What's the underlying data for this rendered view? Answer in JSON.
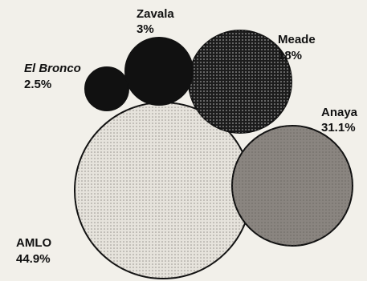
{
  "chart_data": {
    "type": "bubble",
    "title": "",
    "bubbles": [
      {
        "name": "Zavala",
        "value": 3,
        "label": "3%",
        "fill": "#111111",
        "pattern": "solid"
      },
      {
        "name": "Meade",
        "value": 18,
        "label": "18%",
        "fill": "#1c1c1c",
        "pattern": "dots-light"
      },
      {
        "name": "El Bronco",
        "value": 2.5,
        "label": "2.5%",
        "fill": "#111111",
        "pattern": "solid"
      },
      {
        "name": "Anaya",
        "value": 31.1,
        "label": "31.1%",
        "fill": "#8a8580",
        "pattern": "dots-dark"
      },
      {
        "name": "AMLO",
        "value": 44.9,
        "label": "44.9%",
        "fill": "#e6e3dc",
        "pattern": "dots-dark"
      }
    ]
  }
}
